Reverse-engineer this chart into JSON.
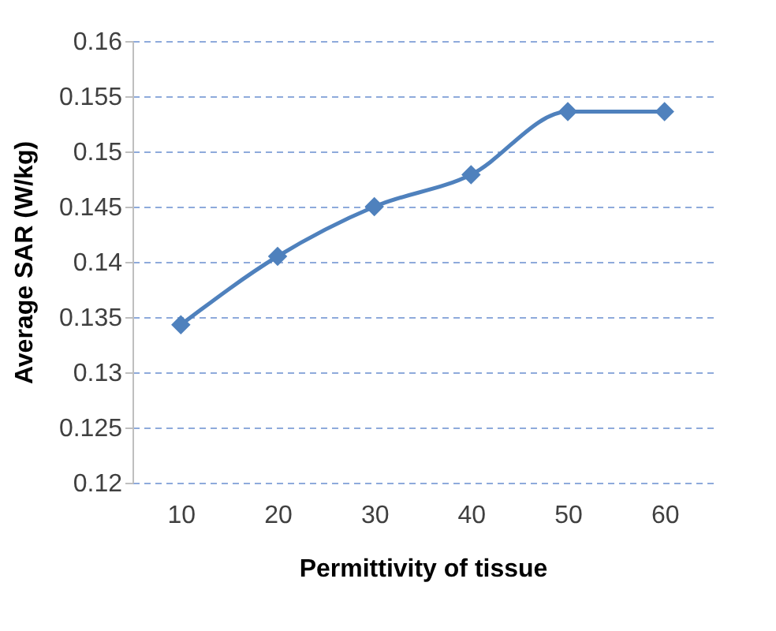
{
  "chart_data": {
    "type": "line",
    "xlabel": "Permittivity of tissue",
    "ylabel": "Average SAR (W/kg)",
    "categories": [
      "10",
      "20",
      "30",
      "40",
      "50",
      "60"
    ],
    "series": [
      {
        "color": "#4f81bd",
        "values": [
          0.1343,
          0.1405,
          0.145,
          0.1479,
          0.1536,
          0.1536
        ]
      }
    ],
    "ylim": [
      0.12,
      0.16
    ],
    "yticks": [
      0.12,
      0.125,
      0.13,
      0.135,
      0.14,
      0.145,
      0.15,
      0.155,
      0.16
    ],
    "grid": "y",
    "marker": "diamond",
    "legend": false
  }
}
